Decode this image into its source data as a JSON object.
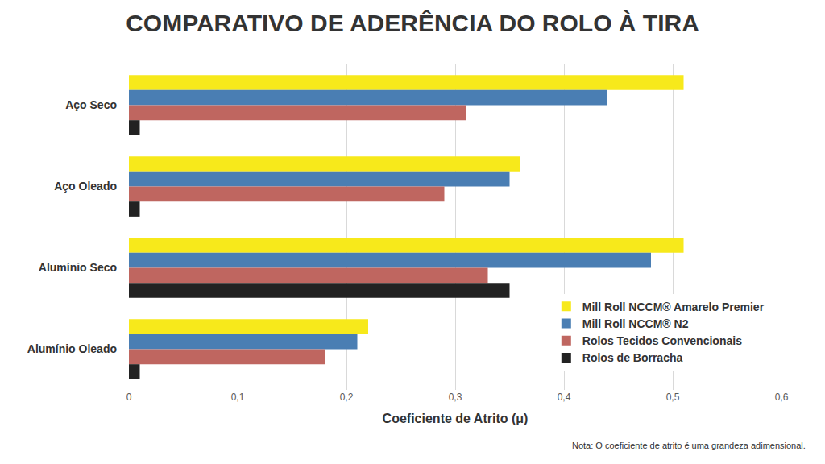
{
  "chart_data": {
    "type": "bar",
    "orientation": "horizontal",
    "title": "COMPARATIVO DE ADERÊNCIA DO ROLO À TIRA",
    "x_label": "Coeficiente de Atrito (μ)",
    "categories": [
      "Aço Seco",
      "Aço Oleado",
      "Alumínio Seco",
      "Alumínio Oleado"
    ],
    "series": [
      {
        "name": "Mill Roll NCCM® Amarelo Premier",
        "color": "#f7e91b",
        "values": [
          0.51,
          0.36,
          0.51,
          0.22
        ]
      },
      {
        "name": "Mill Roll NCCM® N2",
        "color": "#4a7eb3",
        "values": [
          0.44,
          0.35,
          0.48,
          0.21
        ]
      },
      {
        "name": "Rolos Tecidos Convencionais",
        "color": "#bf6660",
        "values": [
          0.31,
          0.29,
          0.33,
          0.18
        ]
      },
      {
        "name": "Rolos de Borracha",
        "color": "#222222",
        "values": [
          0.01,
          0.01,
          0.35,
          0.01
        ]
      }
    ],
    "xlim": [
      0,
      0.6
    ],
    "xticks": [
      0,
      {
        "value": 0.1,
        "label": "0,1"
      },
      {
        "value": 0.2,
        "label": "0,2"
      },
      {
        "value": 0.3,
        "label": "0,3"
      },
      {
        "value": 0.4,
        "label": "0,4"
      },
      {
        "value": 0.5,
        "label": "0,5"
      },
      {
        "value": 0.6,
        "label": "0,6"
      }
    ],
    "grid": true,
    "legend": "lower right",
    "annotations": [
      "Nota: O coeficiente de atrito é uma grandeza adimensional."
    ]
  }
}
